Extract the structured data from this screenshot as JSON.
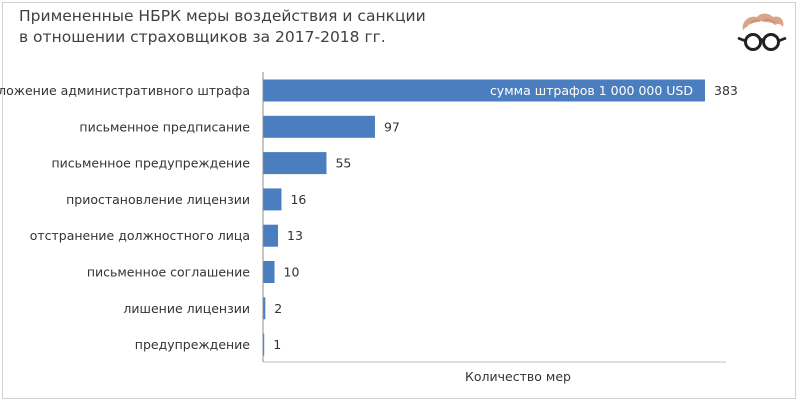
{
  "title_lines": [
    "Примененные НБРК меры воздействия и санкции",
    "в отношении страховщиков за 2017-2018 гг."
  ],
  "colors": {
    "bar": "#4a7ebf",
    "axis": "#bfbfbf",
    "text": "#333333"
  },
  "logo_icon": "hair-glasses-logo-icon",
  "chart_data": {
    "type": "bar",
    "orientation": "horizontal",
    "title": "Примененные НБРК меры воздействия и санкции в отношении страховщиков за 2017-2018 гг.",
    "xlabel": "Количество мер",
    "ylabel": "",
    "categories": [
      "наложение административного штрафа",
      "письменное предписание",
      "письменное предупреждение",
      "приостановление лицензии",
      "отстранение должностного лица",
      "письменное соглашение",
      "лишение лицензии",
      "предупреждение"
    ],
    "values": [
      383,
      97,
      55,
      16,
      13,
      10,
      2,
      1
    ],
    "xlim": [
      0,
      383
    ],
    "grid": false,
    "annotations": [
      {
        "category": "наложение административного штрафа",
        "text": "сумма штрафов 1 000 000 USD"
      }
    ]
  }
}
